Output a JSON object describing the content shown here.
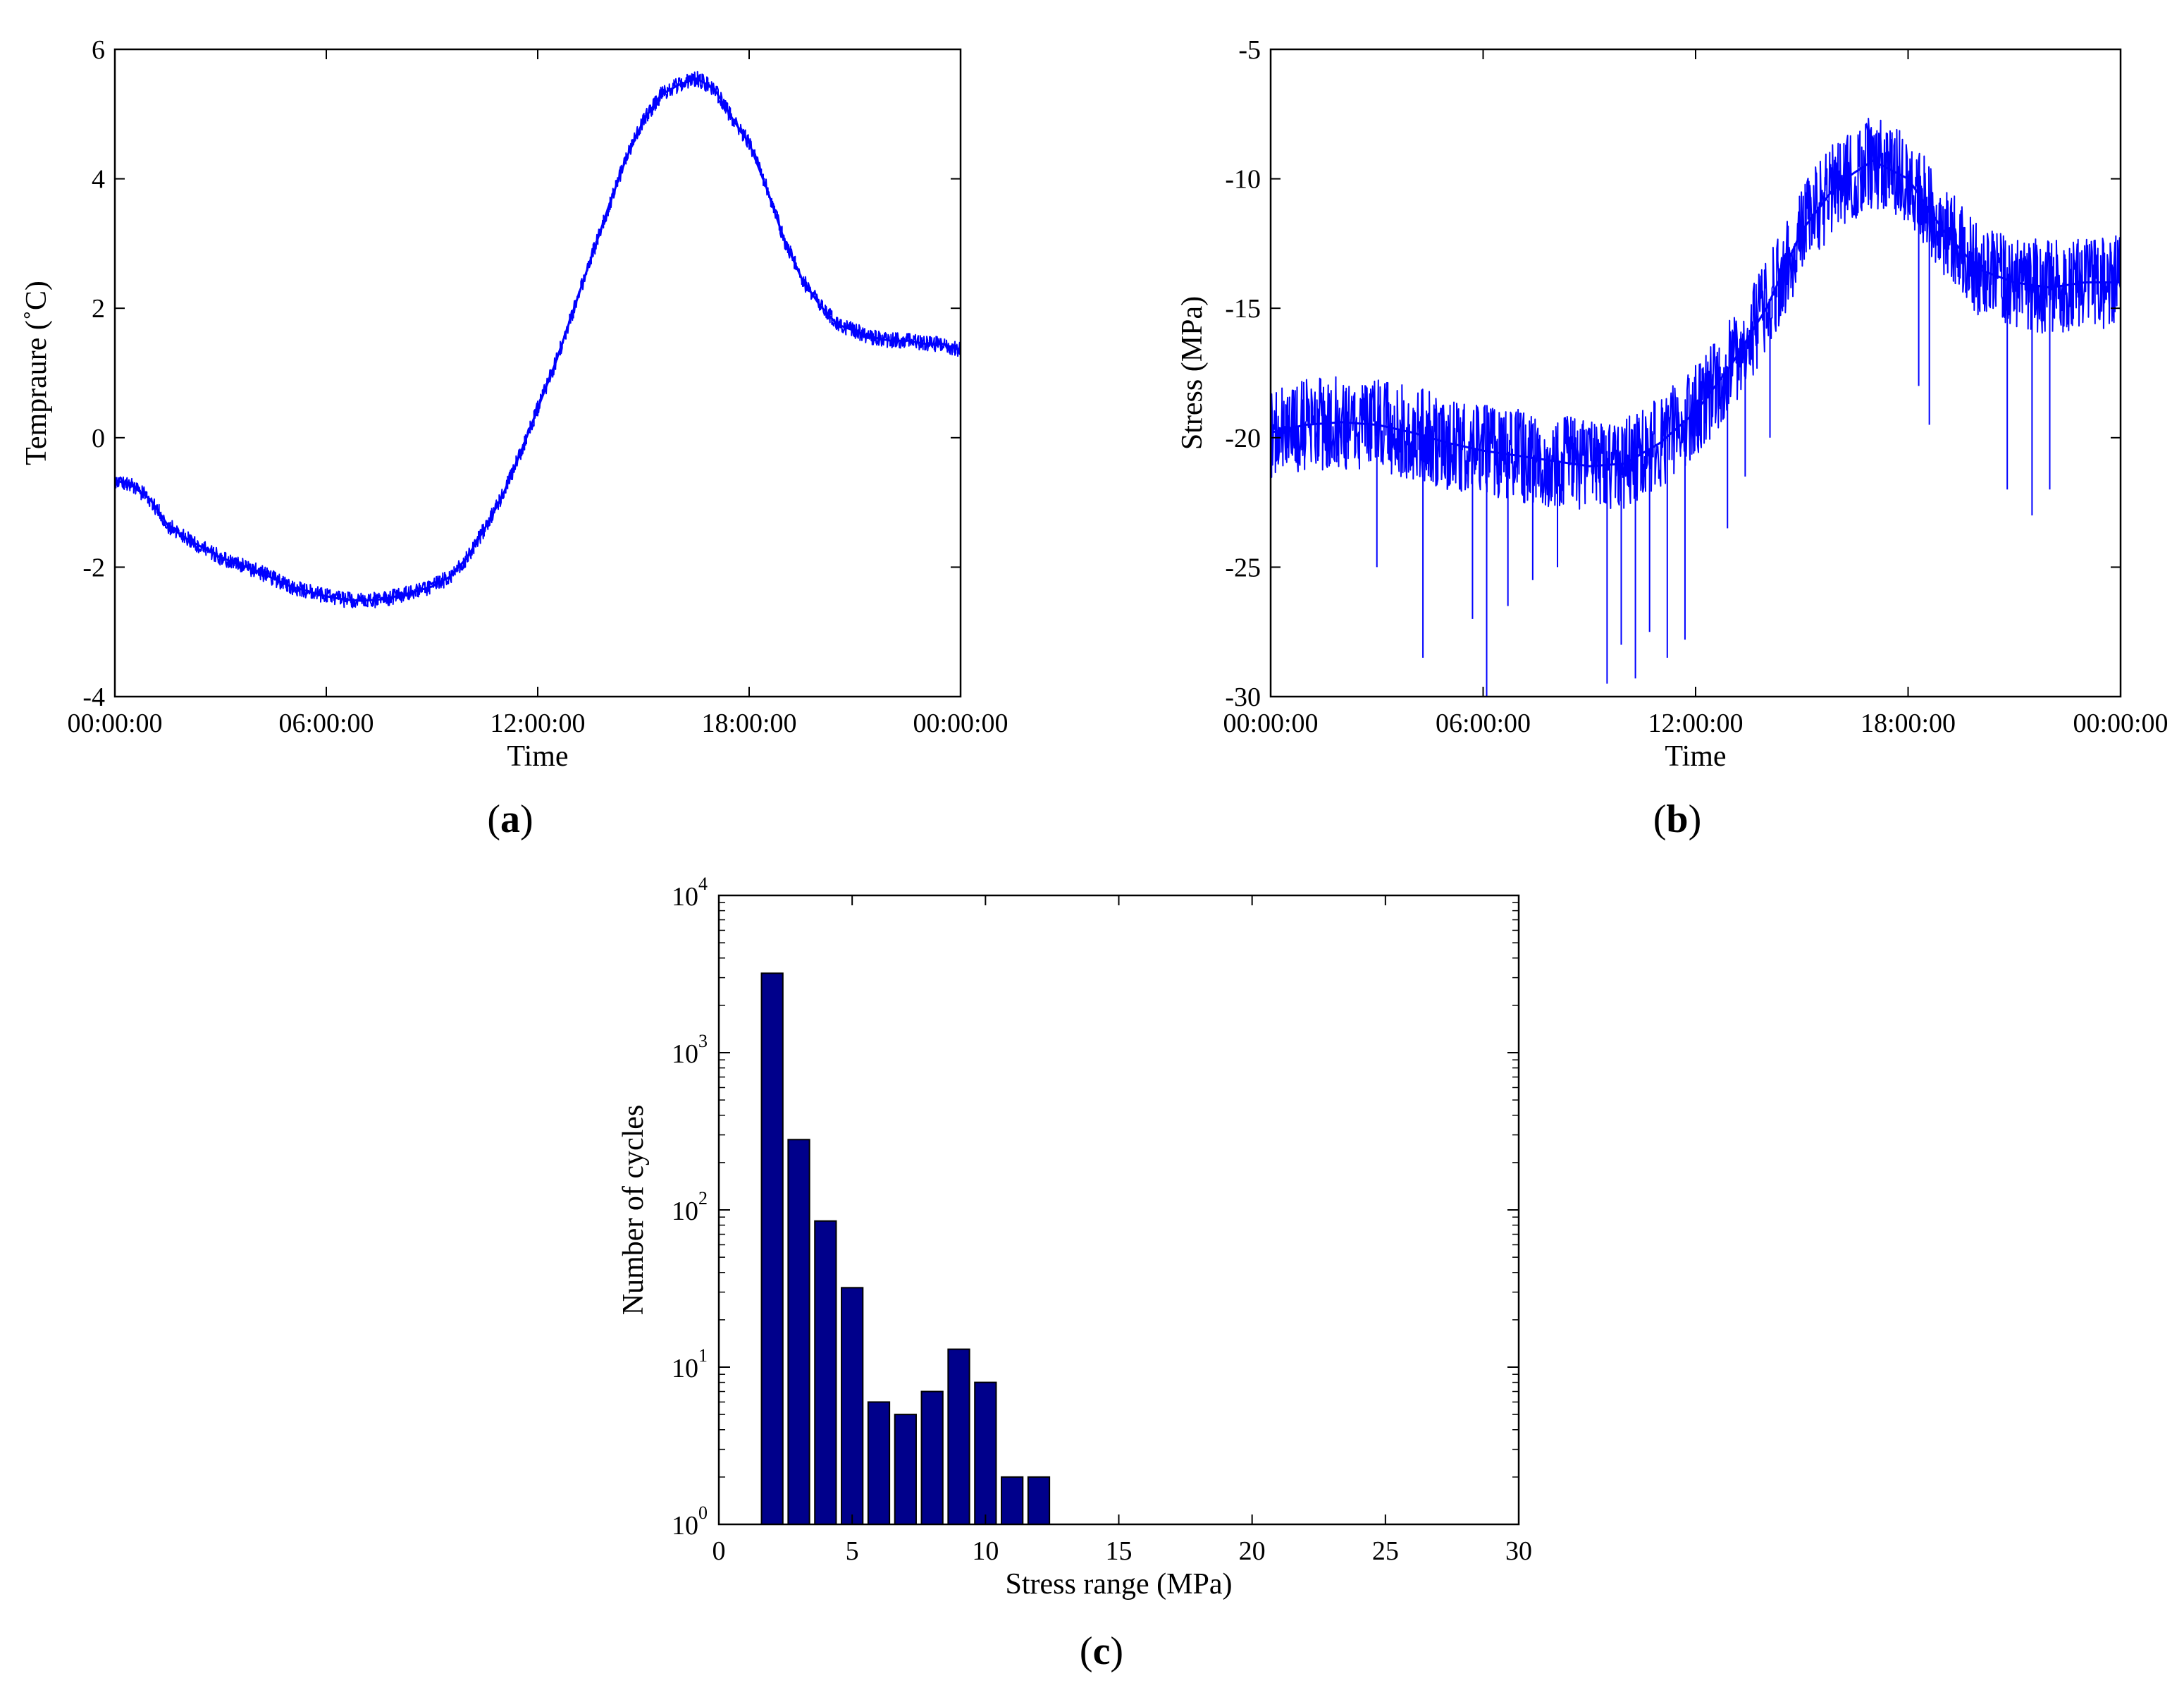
{
  "figure": {
    "panels": [
      "a",
      "b",
      "c"
    ]
  },
  "chart_data": [
    {
      "id": "a",
      "type": "line",
      "caption": "a",
      "title": "",
      "xlabel": "Time",
      "ylabel": "Tempraure (˚C)",
      "x_unit": "hours",
      "xlim": [
        0,
        24
      ],
      "ylim": [
        -4,
        6
      ],
      "x_ticks": [
        0,
        6,
        12,
        18,
        24
      ],
      "x_tick_labels": [
        "00:00:00",
        "06:00:00",
        "12:00:00",
        "18:00:00",
        "00:00:00"
      ],
      "y_ticks": [
        -4,
        -2,
        0,
        2,
        4,
        6
      ],
      "y_tick_labels": [
        "-4",
        "-2",
        "0",
        "2",
        "4",
        "6"
      ],
      "series_color": "#0000ff",
      "noise_amplitude": 0.12,
      "x": [
        0,
        0.5,
        1,
        1.5,
        2,
        3,
        4,
        5,
        6,
        6.5,
        7,
        7.5,
        8,
        8.5,
        9,
        9.5,
        10,
        10.5,
        11,
        11.5,
        12,
        12.5,
        13,
        13.5,
        14,
        14.5,
        15,
        15.5,
        16,
        16.5,
        17,
        17.5,
        18,
        18.5,
        19,
        19.5,
        20,
        20.5,
        21,
        21.5,
        22,
        22.5,
        23,
        23.5,
        24
      ],
      "y": [
        -0.65,
        -0.75,
        -0.95,
        -1.35,
        -1.55,
        -1.85,
        -2.05,
        -2.3,
        -2.45,
        -2.5,
        -2.52,
        -2.5,
        -2.45,
        -2.38,
        -2.3,
        -2.15,
        -1.85,
        -1.4,
        -0.9,
        -0.25,
        0.45,
        1.15,
        1.95,
        2.75,
        3.55,
        4.3,
        4.9,
        5.3,
        5.45,
        5.55,
        5.4,
        4.95,
        4.55,
        3.85,
        3.05,
        2.45,
        2.05,
        1.75,
        1.65,
        1.55,
        1.5,
        1.5,
        1.45,
        1.45,
        1.35
      ]
    },
    {
      "id": "b",
      "type": "line",
      "caption": "b",
      "title": "",
      "xlabel": "Time",
      "ylabel": "Stress (MPa)",
      "x_unit": "hours",
      "xlim": [
        0,
        24
      ],
      "ylim": [
        -30,
        -5
      ],
      "x_ticks": [
        0,
        6,
        12,
        18,
        24
      ],
      "x_tick_labels": [
        "00:00:00",
        "06:00:00",
        "12:00:00",
        "18:00:00",
        "00:00:00"
      ],
      "y_ticks": [
        -30,
        -25,
        -20,
        -15,
        -10,
        -5
      ],
      "y_tick_labels": [
        "-30",
        "-25",
        "-20",
        "-15",
        "-10",
        "-5"
      ],
      "series_color": "#0000ff",
      "noise_amplitude": 1.8,
      "x": [
        0,
        1,
        2,
        3,
        4,
        5,
        6,
        7,
        8,
        9,
        10,
        11,
        12,
        13,
        14,
        15,
        16,
        17,
        18,
        19,
        20,
        21,
        22,
        23,
        24
      ],
      "y": [
        -19.8,
        -19.5,
        -19.4,
        -19.5,
        -19.8,
        -20.2,
        -20.5,
        -20.7,
        -20.9,
        -21.1,
        -21.0,
        -20.2,
        -19.0,
        -17.2,
        -15.0,
        -12.0,
        -10.2,
        -9.3,
        -10.0,
        -12.0,
        -13.5,
        -14.0,
        -14.2,
        -14.0,
        -14.0
      ],
      "spikes": [
        {
          "x": 3.0,
          "y": -25.0
        },
        {
          "x": 4.3,
          "y": -28.5
        },
        {
          "x": 5.7,
          "y": -27.0
        },
        {
          "x": 6.1,
          "y": -30.0
        },
        {
          "x": 6.7,
          "y": -26.5
        },
        {
          "x": 7.4,
          "y": -25.5
        },
        {
          "x": 8.1,
          "y": -25.0
        },
        {
          "x": 9.5,
          "y": -29.5
        },
        {
          "x": 9.9,
          "y": -28.0
        },
        {
          "x": 10.3,
          "y": -29.3
        },
        {
          "x": 10.7,
          "y": -27.5
        },
        {
          "x": 11.2,
          "y": -28.5
        },
        {
          "x": 11.7,
          "y": -27.8
        },
        {
          "x": 12.9,
          "y": -23.5
        },
        {
          "x": 13.4,
          "y": -21.5
        },
        {
          "x": 14.1,
          "y": -20.0
        },
        {
          "x": 18.3,
          "y": -18.0
        },
        {
          "x": 18.6,
          "y": -19.5
        },
        {
          "x": 20.8,
          "y": -22.0
        },
        {
          "x": 21.5,
          "y": -23.0
        },
        {
          "x": 22.0,
          "y": -22.0
        }
      ]
    },
    {
      "id": "c",
      "type": "bar",
      "caption": "c",
      "title": "",
      "xlabel": "Stress range (MPa)",
      "ylabel": "Number of cycles",
      "yscale": "log",
      "xlim": [
        0,
        30
      ],
      "ylim": [
        1,
        10000
      ],
      "x_ticks": [
        0,
        5,
        10,
        15,
        20,
        25,
        30
      ],
      "x_tick_labels": [
        "0",
        "5",
        "10",
        "15",
        "20",
        "25",
        "30"
      ],
      "y_ticks": [
        1,
        10,
        100,
        1000,
        10000
      ],
      "y_tick_labels": [
        {
          "base": "10",
          "exp": "0"
        },
        {
          "base": "10",
          "exp": "1"
        },
        {
          "base": "10",
          "exp": "2"
        },
        {
          "base": "10",
          "exp": "3"
        },
        {
          "base": "10",
          "exp": "4"
        }
      ],
      "bar_width": 0.8,
      "bar_color": "#00008b",
      "categories": [
        2,
        3,
        4,
        5,
        6,
        7,
        8,
        9,
        10,
        11,
        12
      ],
      "values": [
        3200,
        280,
        85,
        32,
        6,
        5,
        7,
        13,
        8,
        2,
        2
      ]
    }
  ]
}
